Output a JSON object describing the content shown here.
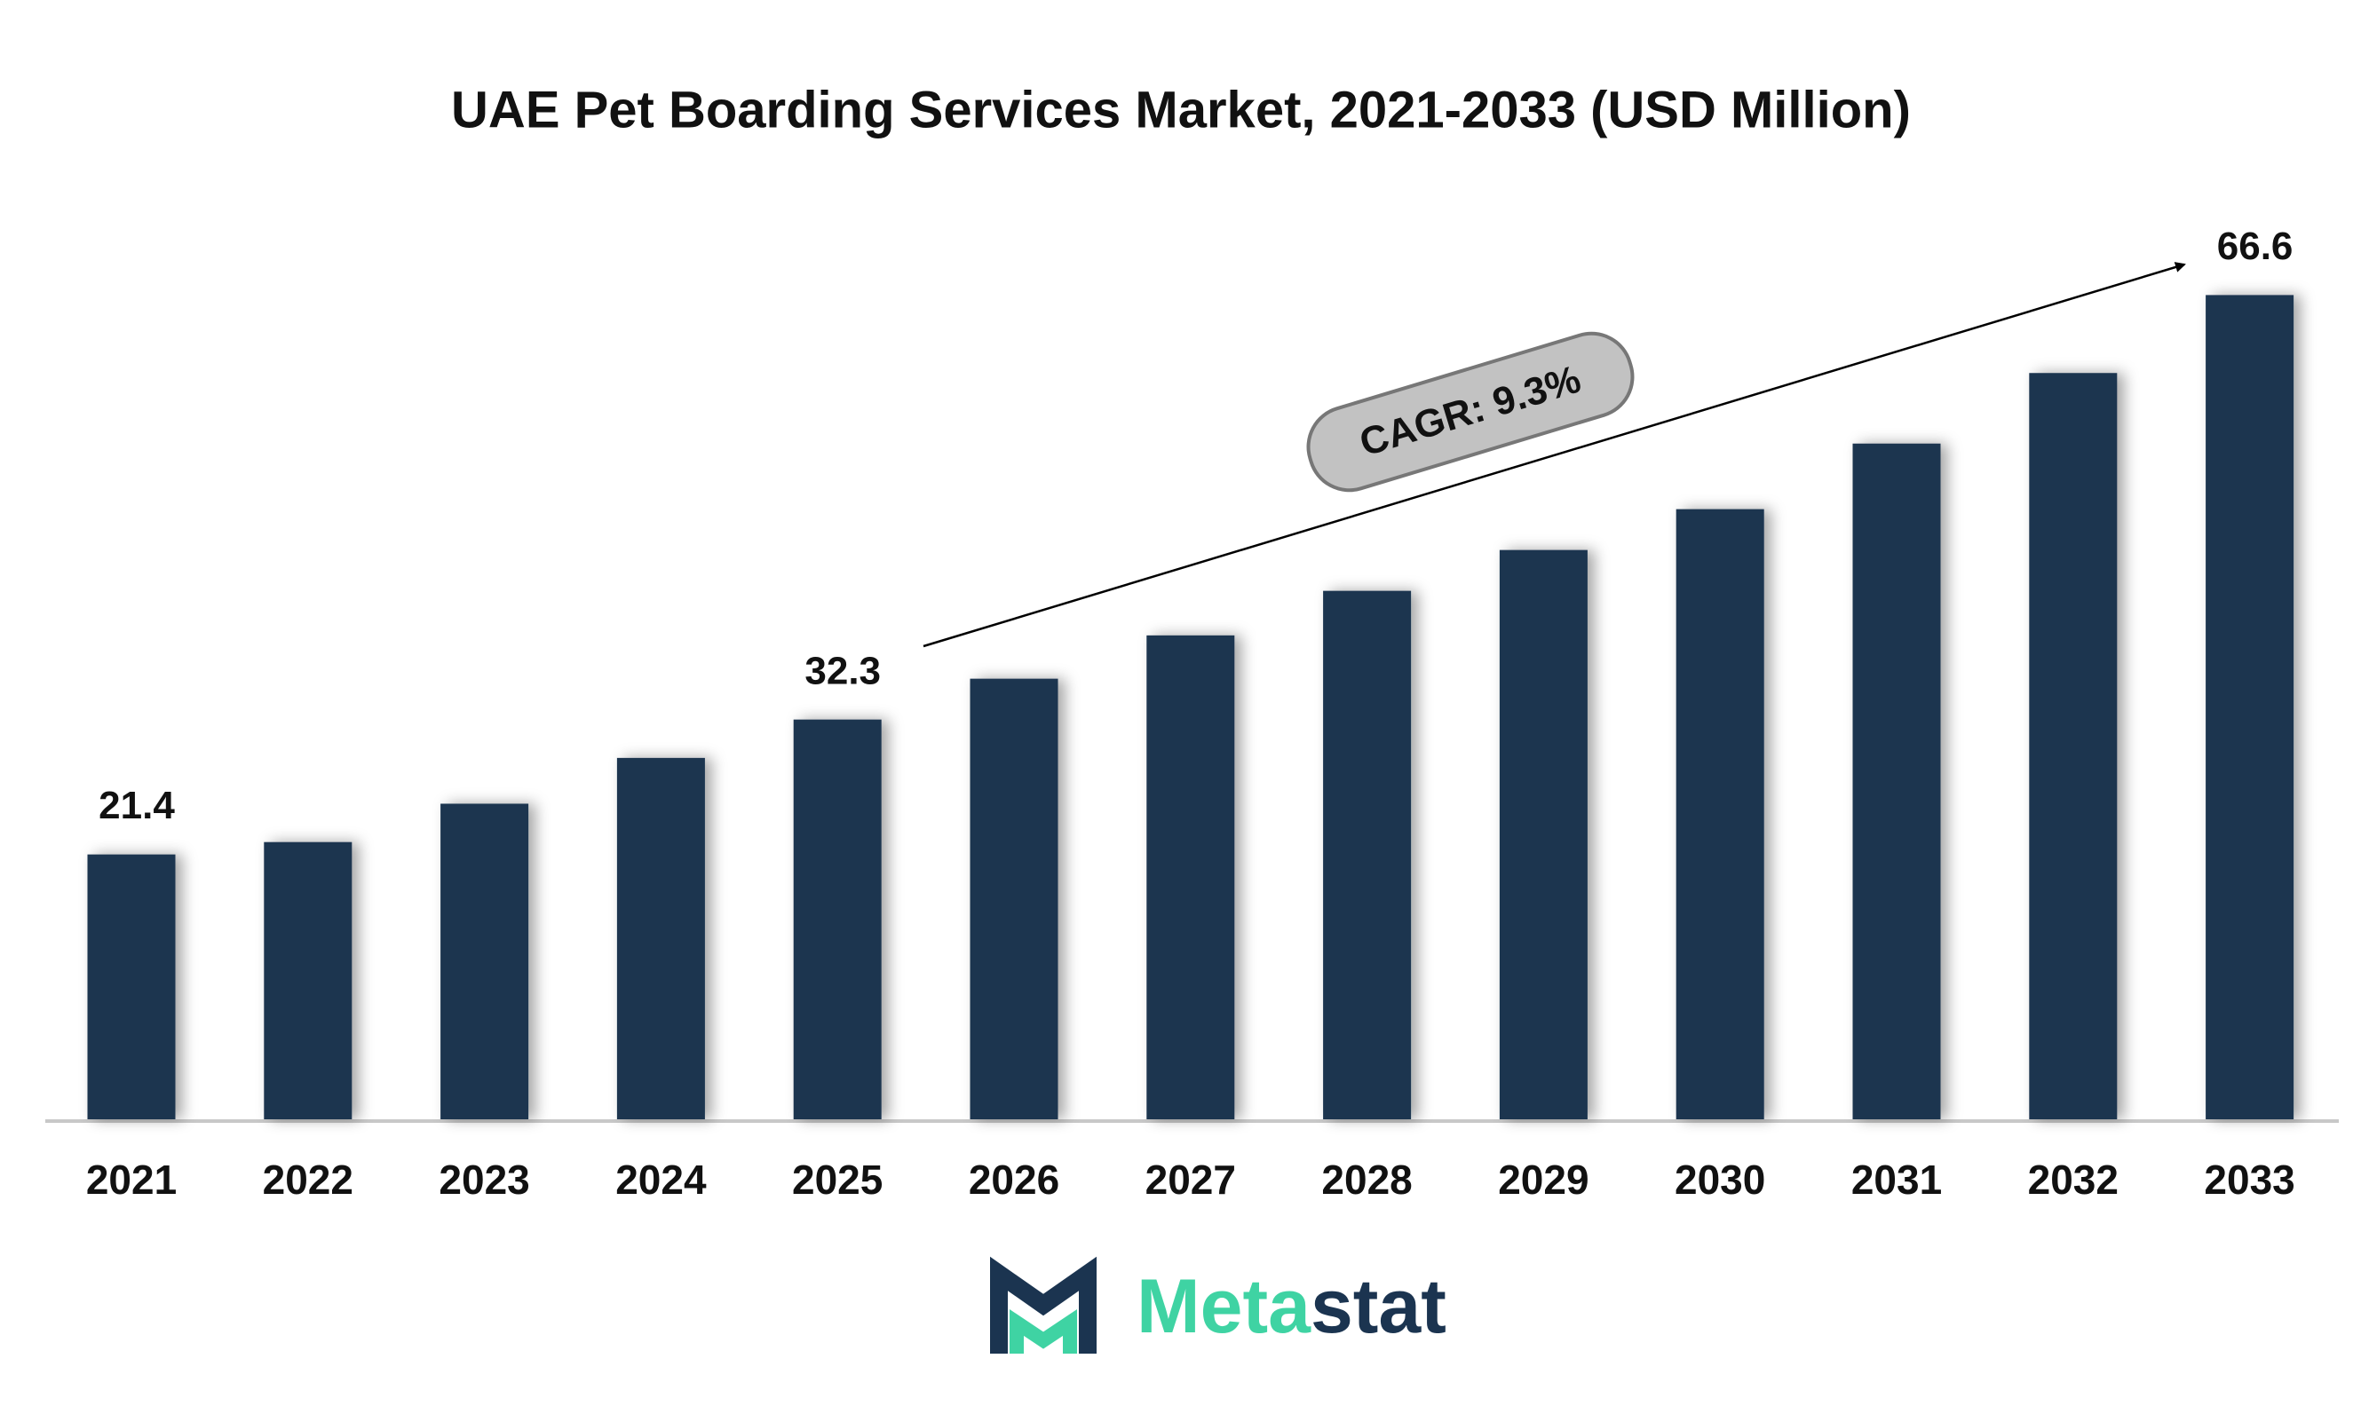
{
  "chart_data": {
    "type": "bar",
    "title": "UAE Pet Boarding Services Market, 2021-2033 (USD Million)",
    "categories": [
      "2021",
      "2022",
      "2023",
      "2024",
      "2025",
      "2026",
      "2027",
      "2028",
      "2029",
      "2030",
      "2031",
      "2032",
      "2033"
    ],
    "values": [
      21.4,
      22.4,
      25.5,
      29.2,
      32.3,
      35.6,
      39.1,
      42.7,
      46.0,
      49.3,
      54.6,
      60.3,
      66.6
    ],
    "value_labels": [
      "21.4",
      null,
      null,
      null,
      "32.3",
      null,
      null,
      null,
      null,
      null,
      null,
      null,
      "66.6"
    ],
    "color": "#1b3450",
    "ylim": [
      0,
      70
    ],
    "annotation": "CAGR: 9.3%"
  },
  "logo": {
    "accent": "Meta",
    "rest": "stat"
  }
}
